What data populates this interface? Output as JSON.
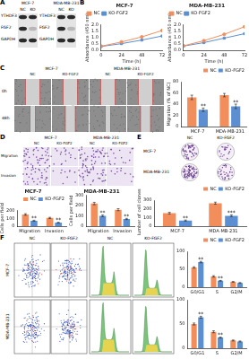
{
  "panels": {
    "A": {
      "label": "A",
      "blots": [
        {
          "cell_line": "MCF-7",
          "lanes": [
            "NC",
            "KO"
          ],
          "proteins": [
            "YTHDF3",
            "FGF2",
            "GAPDH"
          ]
        },
        {
          "cell_line": "MDA-MB-231",
          "lanes": [
            "NC",
            "KO"
          ],
          "proteins": [
            "YTHDF3",
            "FGF2",
            "GAPDH"
          ]
        }
      ]
    },
    "B": {
      "label": "B"
    },
    "C": {
      "label": "C",
      "cell_lines": [
        "MCF-7",
        "MDA-MB-231"
      ],
      "groups": [
        "NC",
        "KO-FGF2"
      ],
      "times": [
        "0h",
        "48h"
      ]
    },
    "D": {
      "label": "D",
      "cell_lines": [
        "MCF-7",
        "MDA-MB-231"
      ],
      "groups": [
        "NC",
        "KO-FGF2"
      ],
      "assays": [
        "Migration",
        "Invasion"
      ]
    },
    "E": {
      "label": "E",
      "cell_lines": [
        "MCF-7",
        "MDA-MB-231"
      ],
      "groups": [
        "NC",
        "KO-FGF2"
      ]
    },
    "F": {
      "label": "F",
      "cell_lines": [
        "MCF-7",
        "MDA-MB-231"
      ],
      "groups": [
        "NC",
        "KO-FGF2"
      ]
    }
  },
  "chart_data": [
    {
      "panel": "B",
      "type": "line",
      "title": "MCF-7",
      "x_label": "Time (h)",
      "y_label": "Absorbance (450 nm)",
      "x": [
        0,
        24,
        48,
        72
      ],
      "xlim": [
        0,
        72
      ],
      "xticks": [
        0,
        24,
        48,
        72
      ],
      "ylim": [
        0,
        2
      ],
      "yticks": [
        {
          "value": 0,
          "label": "0.0"
        },
        {
          "value": 0.5,
          "label": "0.5"
        },
        {
          "value": 1,
          "label": "1.0"
        },
        {
          "value": 1.5,
          "label": "1.5"
        },
        {
          "value": 2,
          "label": "2.0"
        }
      ],
      "grid": false,
      "legend": "top-left",
      "series": [
        {
          "name": "NC",
          "color": "#f28e5c",
          "marker": "circle",
          "values": [
            0.32,
            0.65,
            1.05,
            1.55
          ]
        },
        {
          "name": "KO-FGF2",
          "color": "#5b8fd1",
          "marker": "square",
          "values": [
            0.3,
            0.52,
            0.8,
            1.12
          ]
        }
      ]
    },
    {
      "panel": "B",
      "type": "line",
      "title": "MDA-MB-231",
      "x_label": "Time (h)",
      "y_label": "Absorbance (450 nm)",
      "x": [
        0,
        24,
        48,
        72
      ],
      "xlim": [
        0,
        72
      ],
      "xticks": [
        0,
        24,
        48,
        72
      ],
      "ylim": [
        0,
        2
      ],
      "yticks": [
        {
          "value": 0,
          "label": "0.0"
        },
        {
          "value": 0.5,
          "label": "0.5"
        },
        {
          "value": 1,
          "label": "1.0"
        },
        {
          "value": 1.5,
          "label": "1.5"
        },
        {
          "value": 2,
          "label": "2.0"
        }
      ],
      "grid": false,
      "legend": "top-left",
      "series": [
        {
          "name": "NC",
          "color": "#f28e5c",
          "marker": "circle",
          "values": [
            0.35,
            0.75,
            1.25,
            1.85
          ]
        },
        {
          "name": "KO-FGF2",
          "color": "#5b8fd1",
          "marker": "square",
          "values": [
            0.33,
            0.6,
            0.95,
            1.3
          ]
        }
      ]
    },
    {
      "panel": "C",
      "type": "bar",
      "y_label": "Migration (% of NC)",
      "categories": [
        "MCF-7",
        "MDA-MB-231"
      ],
      "ylim": [
        0,
        80
      ],
      "yticks": [
        0,
        20,
        40,
        60,
        80
      ],
      "grid": false,
      "legend": "top-right",
      "series": [
        {
          "name": "NC",
          "color": "#f28e5c",
          "values": [
            52,
            56
          ],
          "errors": [
            4,
            3
          ]
        },
        {
          "name": "KO-FGF2",
          "color": "#5b8fd1",
          "values": [
            30,
            36
          ],
          "errors": [
            3,
            4
          ],
          "stars": [
            "**",
            "**"
          ]
        }
      ]
    },
    {
      "panel": "D",
      "type": "bar",
      "title": "MCF-7",
      "y_label": "Cells per field",
      "categories": [
        "Migration",
        "Invasion"
      ],
      "ylim": [
        0,
        200
      ],
      "yticks": [
        0,
        100,
        200
      ],
      "grid": false,
      "legend": "top-right",
      "series": [
        {
          "name": "NC",
          "color": "#f28e5c",
          "values": [
            150,
            105
          ],
          "errors": [
            10,
            8
          ]
        },
        {
          "name": "KO-FGF2",
          "color": "#5b8fd1",
          "values": [
            70,
            45
          ],
          "errors": [
            6,
            5
          ],
          "stars": [
            "**",
            "**"
          ]
        }
      ]
    },
    {
      "panel": "D",
      "type": "bar",
      "title": "MDA-MB-231",
      "y_label": "Cells per field",
      "categories": [
        "Migration",
        "Invasion"
      ],
      "ylim": [
        0,
        300
      ],
      "yticks": [
        0,
        100,
        200,
        300
      ],
      "grid": false,
      "series": [
        {
          "name": "NC",
          "color": "#f28e5c",
          "values": [
            220,
            160
          ],
          "errors": [
            12,
            10
          ]
        },
        {
          "name": "KO-FGF2",
          "color": "#5b8fd1",
          "values": [
            100,
            70
          ],
          "errors": [
            8,
            6
          ],
          "stars": [
            "**",
            "**"
          ]
        }
      ]
    },
    {
      "panel": "E",
      "type": "bar",
      "y_label": "Number of cell clones",
      "categories": [
        "MCF-7",
        "MDA-MB-231"
      ],
      "ylim": [
        0,
        300
      ],
      "yticks": [
        0,
        100,
        200,
        300
      ],
      "grid": false,
      "legend": "top-right",
      "series": [
        {
          "name": "NC",
          "color": "#f28e5c",
          "values": [
            150,
            265
          ],
          "errors": [
            10,
            12
          ]
        },
        {
          "name": "KO-FGF2",
          "color": "#5b8fd1",
          "values": [
            65,
            120
          ],
          "errors": [
            6,
            10
          ],
          "stars": [
            "**",
            "***"
          ]
        }
      ]
    },
    {
      "panel": "F",
      "type": "bar",
      "categories": [
        "G0/G1",
        "S",
        "G2/M"
      ],
      "ylim": [
        0,
        100
      ],
      "yticks": [
        0,
        50,
        100
      ],
      "grid": false,
      "legend": "top-right",
      "series": [
        {
          "name": "NC",
          "color": "#f28e5c",
          "values": [
            55,
            30,
            15
          ],
          "errors": [
            2,
            2,
            1
          ]
        },
        {
          "name": "KO-FGF2",
          "color": "#5b8fd1",
          "values": [
            70,
            18,
            12
          ],
          "errors": [
            2,
            1,
            1
          ],
          "stars": [
            "**",
            "**",
            null
          ]
        }
      ]
    },
    {
      "panel": "F",
      "type": "bar",
      "categories": [
        "G0/G1",
        "S",
        "G2/M"
      ],
      "ylim": [
        0,
        100
      ],
      "yticks": [
        0,
        50,
        100
      ],
      "grid": false,
      "series": [
        {
          "name": "NC",
          "color": "#f28e5c",
          "values": [
            50,
            34,
            16
          ],
          "errors": [
            2,
            2,
            1
          ]
        },
        {
          "name": "KO-FGF2",
          "color": "#5b8fd1",
          "values": [
            64,
            22,
            14
          ],
          "errors": [
            2,
            1,
            1
          ],
          "stars": [
            "**",
            "**",
            null
          ]
        }
      ]
    }
  ]
}
